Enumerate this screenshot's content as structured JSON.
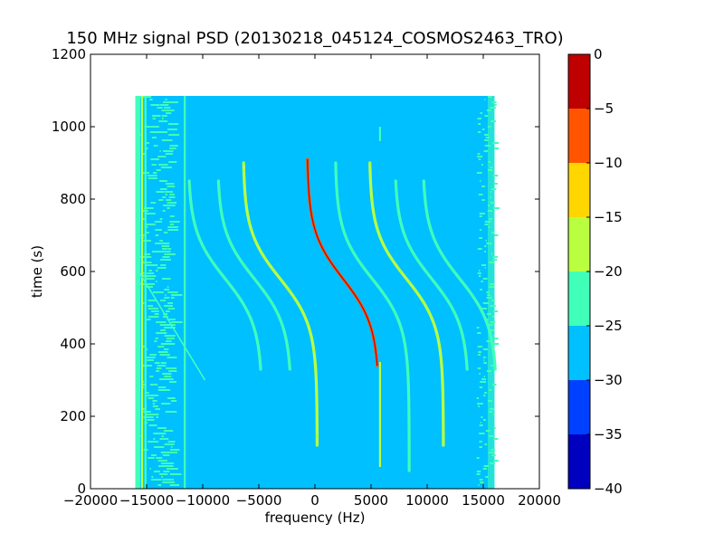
{
  "chart_data": {
    "type": "heatmap",
    "title": "150 MHz signal PSD (20130218_045124_COSMOS2463_TRO)",
    "xlabel": "frequency (Hz)",
    "ylabel": "time (s)",
    "xlim": [
      -20000,
      20000
    ],
    "ylim": [
      0,
      1200
    ],
    "xticks": [
      -20000,
      -15000,
      -10000,
      -5000,
      0,
      5000,
      10000,
      15000,
      20000
    ],
    "xtick_labels": [
      "−20000",
      "−15000",
      "−10000",
      "−5000",
      "0",
      "5000",
      "10000",
      "15000",
      "20000"
    ],
    "yticks": [
      0,
      200,
      400,
      600,
      800,
      1000,
      1200
    ],
    "ytick_labels": [
      "0",
      "200",
      "400",
      "600",
      "800",
      "1000",
      "1200"
    ],
    "data_extent": {
      "x": [
        -16000,
        16000
      ],
      "y": [
        0,
        1085
      ]
    },
    "background_level": -27.5,
    "colorbar": {
      "levels": [
        -40,
        -35,
        -30,
        -25,
        -20,
        -15,
        -10,
        -5,
        0
      ],
      "tick_labels": [
        "−40",
        "−35",
        "−30",
        "−25",
        "−20",
        "−15",
        "−10",
        "−5",
        "0"
      ],
      "colors": [
        "#0000bf",
        "#0040ff",
        "#00c0ff",
        "#40ffb9",
        "#b9ff40",
        "#ffd600",
        "#ff5500",
        "#bf0000"
      ]
    },
    "features": [
      {
        "kind": "vertical_line",
        "x": -15400,
        "y": [
          0,
          1085
        ],
        "level": -17.5
      },
      {
        "kind": "vertical_line",
        "x": -15100,
        "y": [
          0,
          1085
        ],
        "level": -22.5
      },
      {
        "kind": "vertical_line",
        "x": -11600,
        "y": [
          0,
          1085
        ],
        "level": -22.5
      },
      {
        "kind": "vertical_line",
        "x": 5800,
        "y": [
          60,
          350
        ],
        "level": -17.5
      },
      {
        "kind": "vertical_line",
        "x": 5800,
        "y": [
          960,
          1000
        ],
        "level": -22.5
      },
      {
        "kind": "doppler_curve",
        "center_hz": 2500,
        "tca_s": 580,
        "amp_hz": 3200,
        "tau_s": 130,
        "y": [
          340,
          910
        ],
        "level": -7.5,
        "core_level": -2.5
      },
      {
        "kind": "doppler_curve",
        "center_hz": -3100,
        "tca_s": 580,
        "amp_hz": 3300,
        "tau_s": 130,
        "y": [
          120,
          900
        ],
        "level": -17.5
      },
      {
        "kind": "doppler_curve",
        "center_hz": 8150,
        "tca_s": 580,
        "amp_hz": 3300,
        "tau_s": 130,
        "y": [
          120,
          900
        ],
        "level": -17.5
      },
      {
        "kind": "doppler_curve",
        "center_hz": -5400,
        "tca_s": 580,
        "amp_hz": 3300,
        "tau_s": 130,
        "y": [
          330,
          850
        ],
        "level": -22.5
      },
      {
        "kind": "doppler_curve",
        "center_hz": -8000,
        "tca_s": 580,
        "amp_hz": 3300,
        "tau_s": 130,
        "y": [
          330,
          850
        ],
        "level": -22.5
      },
      {
        "kind": "doppler_curve",
        "center_hz": 5100,
        "tca_s": 580,
        "amp_hz": 3300,
        "tau_s": 130,
        "y": [
          50,
          900
        ],
        "level": -20
      },
      {
        "kind": "doppler_curve",
        "center_hz": 10400,
        "tca_s": 580,
        "amp_hz": 3300,
        "tau_s": 130,
        "y": [
          330,
          850
        ],
        "level": -22.5
      },
      {
        "kind": "doppler_curve",
        "center_hz": 12900,
        "tca_s": 580,
        "amp_hz": 3300,
        "tau_s": 130,
        "y": [
          330,
          850
        ],
        "level": -22.5
      },
      {
        "kind": "segment",
        "x": [
          -15700,
          -9800
        ],
        "y": [
          600,
          300
        ],
        "level": -20
      }
    ]
  }
}
